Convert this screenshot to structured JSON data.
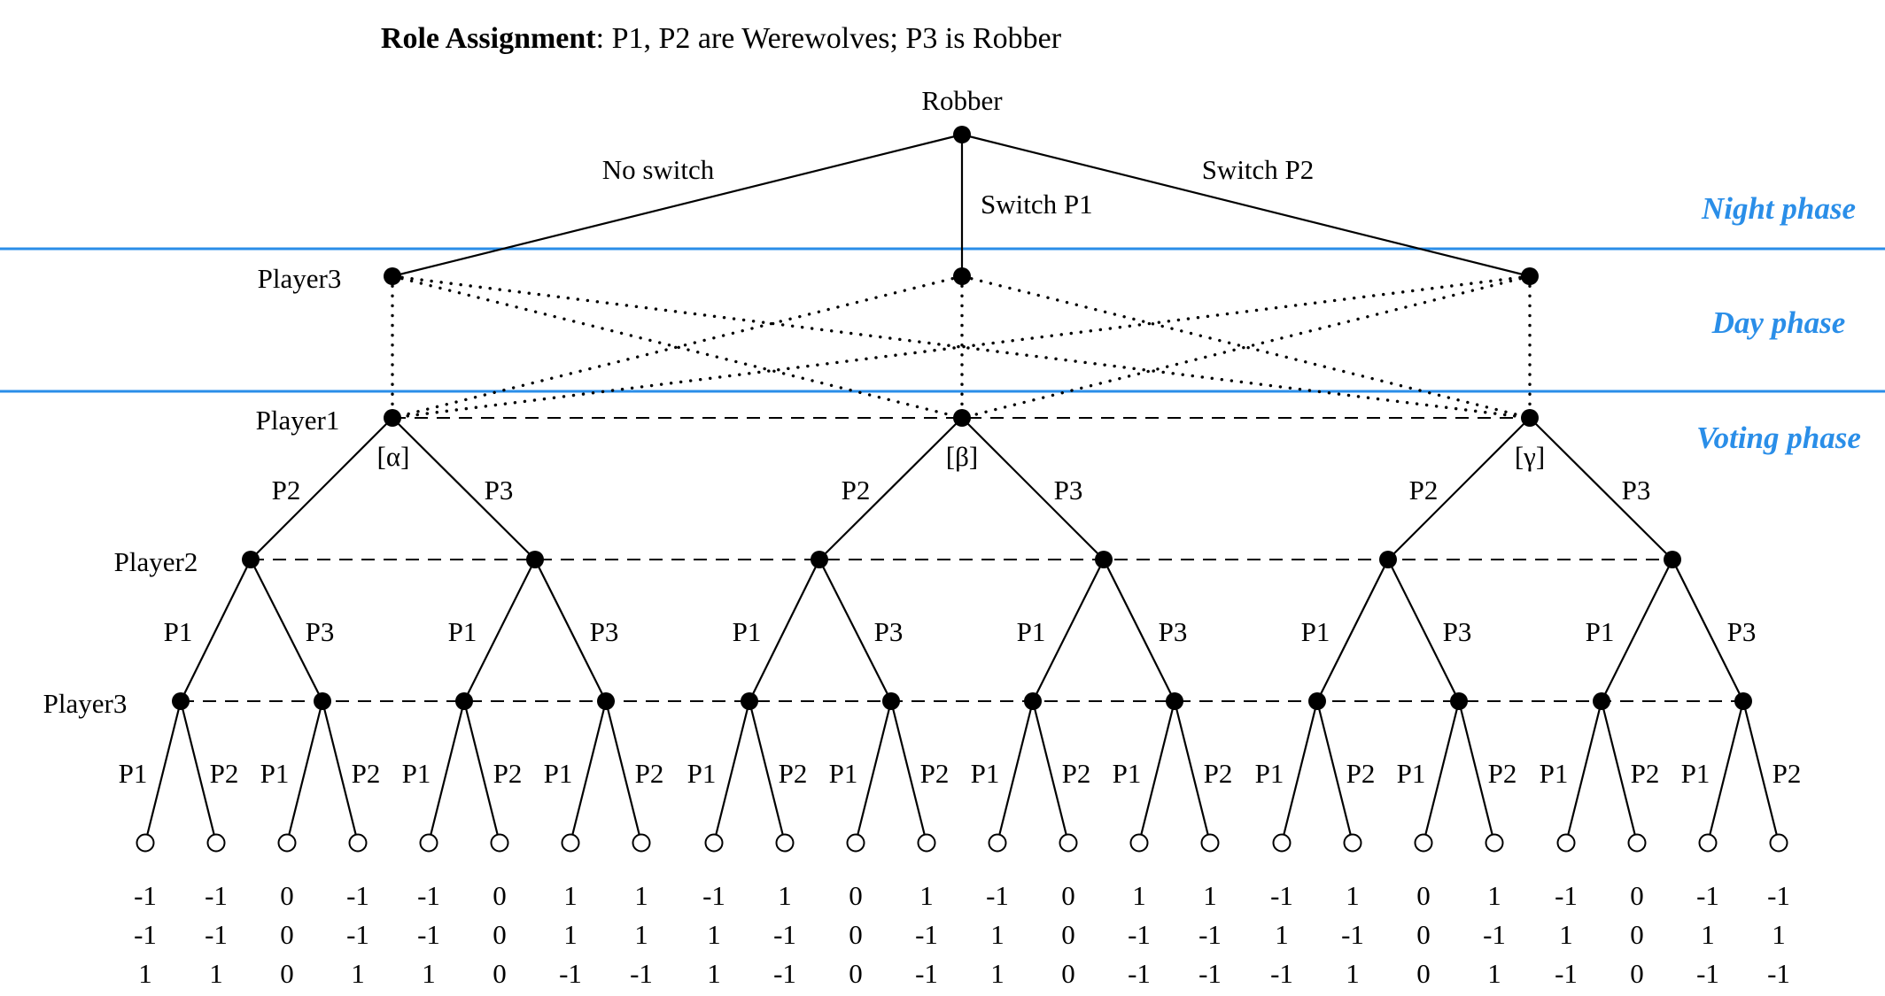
{
  "title": {
    "bold": "Role Assignment",
    "rest": ": P1, P2 are Werewolves; P3 is Robber"
  },
  "colors": {
    "phase": "#2a8ee8",
    "ink": "#000000"
  },
  "phases": {
    "night": "Night phase",
    "day": "Day phase",
    "voting": "Voting phase"
  },
  "root_label": "Robber",
  "robber_actions": [
    "No switch",
    "Switch P1",
    "Switch P2"
  ],
  "player_labels": {
    "p3_day": "Player3",
    "p1": "Player1",
    "p2": "Player2",
    "p3_vote": "Player3"
  },
  "info_sets": [
    "[α]",
    "[β]",
    "[γ]"
  ],
  "p1_actions": [
    "P2",
    "P3"
  ],
  "p2_actions": [
    "P1",
    "P3"
  ],
  "p3_actions": [
    "P1",
    "P2"
  ],
  "payoffs": [
    [
      "-1",
      "-1",
      "0",
      "-1",
      "-1",
      "0",
      "1",
      "1",
      "-1",
      "1",
      "0",
      "1",
      "-1",
      "0",
      "1",
      "1",
      "-1",
      "1",
      "0",
      "1",
      "-1",
      "0",
      "-1",
      "-1"
    ],
    [
      "-1",
      "-1",
      "0",
      "-1",
      "-1",
      "0",
      "1",
      "1",
      "1",
      "-1",
      "0",
      "-1",
      "1",
      "0",
      "-1",
      "-1",
      "1",
      "-1",
      "0",
      "-1",
      "1",
      "0",
      "1",
      "1"
    ],
    [
      "1",
      "1",
      "0",
      "1",
      "1",
      "0",
      "-1",
      "-1",
      "1",
      "-1",
      "0",
      "-1",
      "1",
      "0",
      "-1",
      "-1",
      "-1",
      "1",
      "0",
      "1",
      "-1",
      "0",
      "-1",
      "-1"
    ]
  ]
}
